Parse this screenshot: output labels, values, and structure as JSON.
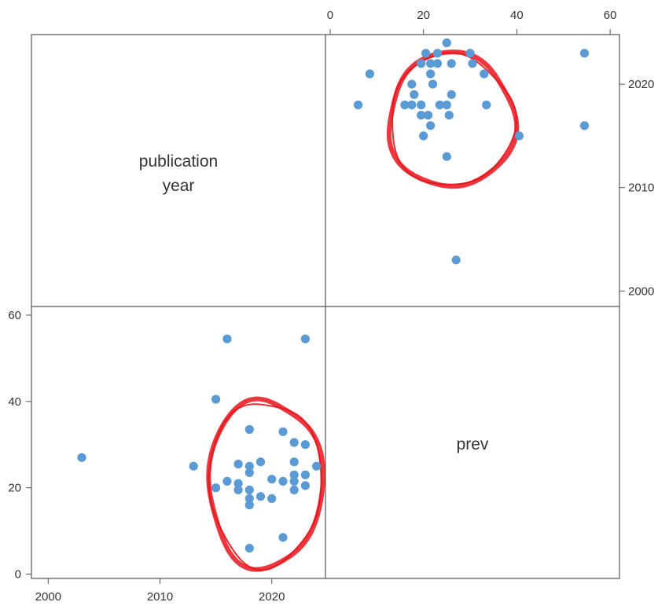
{
  "chart_data": {
    "type": "scatter",
    "layout": "scatter-matrix",
    "variables": [
      "publication year",
      "prev"
    ],
    "diagonal_labels": {
      "year_line1": "publication",
      "year_line2": "year",
      "prev": "prev"
    },
    "point_color": "#5b9bd5",
    "annotation_color": "#e8141b",
    "axes": {
      "year": {
        "range": [
          1998.5,
          2024.8
        ],
        "ticks": [
          2000,
          2010,
          2020
        ],
        "tick_labels": [
          "2000",
          "2010",
          "2020"
        ]
      },
      "prev": {
        "range": [
          -1,
          62
        ],
        "ticks": [
          0,
          20,
          40,
          60
        ],
        "tick_labels": [
          "0",
          "20",
          "40",
          "60"
        ]
      }
    },
    "points": [
      {
        "year": 2003,
        "prev": 27
      },
      {
        "year": 2013,
        "prev": 25
      },
      {
        "year": 2015,
        "prev": 40.5
      },
      {
        "year": 2015,
        "prev": 20
      },
      {
        "year": 2016,
        "prev": 54.5
      },
      {
        "year": 2016,
        "prev": 21.5
      },
      {
        "year": 2017,
        "prev": 25.5
      },
      {
        "year": 2017,
        "prev": 21
      },
      {
        "year": 2017,
        "prev": 19.5
      },
      {
        "year": 2018,
        "prev": 33.5
      },
      {
        "year": 2018,
        "prev": 25
      },
      {
        "year": 2018,
        "prev": 23.5
      },
      {
        "year": 2018,
        "prev": 19.5
      },
      {
        "year": 2018,
        "prev": 17.5
      },
      {
        "year": 2018,
        "prev": 16
      },
      {
        "year": 2018,
        "prev": 6
      },
      {
        "year": 2019,
        "prev": 26
      },
      {
        "year": 2019,
        "prev": 18
      },
      {
        "year": 2020,
        "prev": 22
      },
      {
        "year": 2020,
        "prev": 17.5
      },
      {
        "year": 2021,
        "prev": 33
      },
      {
        "year": 2021,
        "prev": 21.5
      },
      {
        "year": 2021,
        "prev": 8.5
      },
      {
        "year": 2022,
        "prev": 30.5
      },
      {
        "year": 2022,
        "prev": 26
      },
      {
        "year": 2022,
        "prev": 23
      },
      {
        "year": 2022,
        "prev": 21.5
      },
      {
        "year": 2022,
        "prev": 19.5
      },
      {
        "year": 2023,
        "prev": 54.5
      },
      {
        "year": 2023,
        "prev": 30
      },
      {
        "year": 2023,
        "prev": 23
      },
      {
        "year": 2023,
        "prev": 20.5
      },
      {
        "year": 2024,
        "prev": 25
      }
    ],
    "annotations": [
      {
        "shape": "hand-drawn circle",
        "panel": "upper-right",
        "center": {
          "prev": 26,
          "year": 2016.5
        },
        "radius_prev": 13.5,
        "radius_year": 6.5
      },
      {
        "shape": "hand-drawn circle",
        "panel": "lower-left",
        "center": {
          "year": 2019.4,
          "prev": 21
        },
        "radius_year": 5.1,
        "radius_prev": 19.5
      }
    ]
  }
}
